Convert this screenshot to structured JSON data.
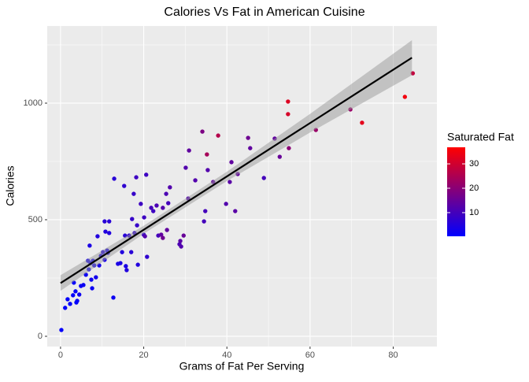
{
  "chart_data": {
    "type": "scatter",
    "title": "Calories Vs Fat in American Cuisine",
    "x_label": "Grams of Fat Per Serving",
    "y_label": "Calories",
    "xlim": [
      -3.2,
      90.5
    ],
    "ylim": [
      -44,
      1331
    ],
    "xticks": [
      0,
      20,
      40,
      60,
      80
    ],
    "yticks": [
      0,
      500,
      1000
    ],
    "x_minor_grid": [
      10,
      30,
      50,
      70
    ],
    "y_minor_grid": [
      250,
      750,
      1250
    ],
    "grid": true,
    "x": [
      0.2,
      1.1,
      1.7,
      2.3,
      3,
      3.2,
      3.6,
      4,
      3.8,
      4.9,
      4.5,
      5.5,
      6.1,
      6.6,
      6.8,
      7.2,
      7,
      7.4,
      7.8,
      7.6,
      8.1,
      8.5,
      8.9,
      9.3,
      9.7,
      10.2,
      10.6,
      10.6,
      10.8,
      11.2,
      11.4,
      11.7,
      11.7,
      12.7,
      12.9,
      13.8,
      14.4,
      14.8,
      15.3,
      15.5,
      15.7,
      15.9,
      16.5,
      17,
      17.2,
      17.6,
      17.8,
      18.2,
      18.4,
      18.6,
      19.3,
      20,
      20.1,
      20.3,
      20.6,
      20.8,
      21.8,
      22.3,
      23.1,
      23.5,
      24.2,
      24.6,
      24.6,
      25.4,
      25.6,
      25.9,
      26.3,
      28.6,
      28.8,
      29,
      29.6,
      30.1,
      30.7,
      30.9,
      32.4,
      34.1,
      34.5,
      34.8,
      35.2,
      35.4,
      36.7,
      37.9,
      39.8,
      40.7,
      41.1,
      42,
      42.6,
      45.1,
      45.6,
      48.9,
      51.5,
      52.7,
      54.7,
      54.7,
      54.9,
      61.4,
      69.7,
      72.5,
      82.8,
      84.7
    ],
    "y": [
      27,
      122,
      159,
      139,
      176,
      230,
      193,
      152,
      145,
      216,
      179,
      220,
      264,
      324,
      287,
      314,
      389,
      243,
      324,
      206,
      304,
      253,
      429,
      304,
      345,
      361,
      328,
      493,
      449,
      368,
      358,
      443,
      493,
      166,
      676,
      311,
      314,
      361,
      645,
      432,
      301,
      284,
      432,
      361,
      503,
      611,
      443,
      682,
      476,
      307,
      568,
      436,
      510,
      429,
      693,
      341,
      551,
      537,
      561,
      432,
      436,
      422,
      551,
      611,
      456,
      571,
      639,
      395,
      409,
      385,
      432,
      723,
      591,
      797,
      669,
      878,
      493,
      537,
      780,
      713,
      662,
      861,
      568,
      662,
      747,
      537,
      696,
      851,
      807,
      679,
      848,
      770,
      1007,
      953,
      807,
      885,
      973,
      916,
      1027,
      1128
    ],
    "saturated_fat": [
      1,
      1,
      1,
      1,
      1,
      1,
      1,
      1,
      1,
      2,
      2,
      2,
      2,
      3,
      2,
      3,
      4,
      2,
      3,
      2,
      3,
      3,
      5,
      3,
      4,
      5,
      4,
      6,
      5,
      4,
      4,
      5,
      6,
      2,
      6,
      4,
      4,
      5,
      7,
      6,
      4,
      5,
      7,
      6,
      8,
      8,
      7,
      9,
      8,
      5,
      9,
      8,
      9,
      12,
      9,
      7,
      10,
      9,
      11,
      10,
      14,
      16,
      12,
      11,
      14,
      10,
      12,
      11,
      13,
      12,
      15,
      12,
      12,
      14,
      12,
      18,
      10,
      10,
      24,
      12,
      14,
      26,
      12,
      13,
      14,
      13,
      14,
      16,
      14,
      10,
      14,
      15,
      32,
      31,
      20,
      22,
      22,
      33,
      35,
      28
    ],
    "color_legend": {
      "title": "Saturated Fat",
      "low_color": "#0000FF",
      "high_color": "#FF0000",
      "lim": [
        0.3,
        36.8
      ],
      "ticks": [
        10,
        20,
        30
      ]
    },
    "fit": {
      "color": "#000000",
      "x": [
        0,
        84.5
      ],
      "y": [
        228,
        1195
      ]
    },
    "band": {
      "color": "#999999",
      "x": [
        0,
        20,
        40,
        60,
        84.5
      ],
      "lower": [
        195,
        440,
        666,
        874,
        1120
      ],
      "upper": [
        262,
        474,
        706,
        954,
        1270
      ]
    }
  }
}
